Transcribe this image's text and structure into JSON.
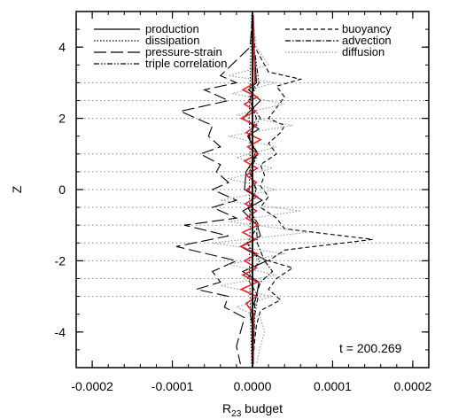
{
  "chart_data": {
    "type": "line",
    "xlabel_main": "R",
    "xlabel_sub": "23",
    "xlabel_rest": " budget",
    "ylabel": "Z",
    "xlim": [
      -0.00022,
      0.00022
    ],
    "ylim": [
      -5,
      5
    ],
    "x_ticks": [
      -0.0002,
      -0.0001,
      0.0,
      0.0001,
      0.0002
    ],
    "x_tick_labels": [
      "-0.0002",
      "-0.0001",
      "0.0000",
      "0.0001",
      "0.0002"
    ],
    "y_ticks": [
      -4,
      -2,
      0,
      2,
      4
    ],
    "y_tick_labels": [
      "-4",
      "-2",
      "0",
      "2",
      "4"
    ],
    "hlines_z": [
      -3,
      -2.5,
      -2,
      -1.5,
      -1,
      -0.5,
      0,
      0.5,
      1,
      2,
      2.5,
      3
    ],
    "annotation": "t = 200.269",
    "legend_left": [
      "production",
      "dissipation",
      "pressure-strain",
      "triple correlation"
    ],
    "legend_right": [
      "buoyancy",
      "advection",
      "diffusion"
    ],
    "series": [
      {
        "name": "production",
        "style": "solid",
        "color": "#000000",
        "z": [
          4.9,
          4.0,
          3.0,
          2.8,
          2.5,
          2.0,
          1.7,
          1.5,
          1.0,
          0.5,
          0.0,
          -0.3,
          -0.6,
          -1.0,
          -1.3,
          -1.6,
          -2.0,
          -2.3,
          -2.6,
          -3.0,
          -3.5,
          -4.0,
          -4.9
        ],
        "values": [
          0,
          2e-06,
          5e-06,
          -5e-06,
          1e-05,
          -1.2e-05,
          8e-06,
          -6e-06,
          6e-06,
          -8e-06,
          -1e-05,
          1.2e-05,
          -1.2e-05,
          6e-06,
          1e-05,
          -1.5e-05,
          1.8e-05,
          -1.2e-05,
          8e-06,
          5e-06,
          -3e-06,
          2e-06,
          0
        ]
      },
      {
        "name": "dissipation",
        "style": "dotted",
        "color": "#000000",
        "z": [
          4.9,
          4.0,
          3.0,
          2.0,
          1.0,
          0.0,
          -1.0,
          -2.0,
          -3.0,
          -4.0,
          -4.9
        ],
        "values": [
          -1e-06,
          -2e-06,
          -3e-06,
          -4e-06,
          -3e-06,
          -4e-06,
          -3e-06,
          -4e-06,
          -3e-06,
          -2e-06,
          -1e-06
        ]
      },
      {
        "name": "pressure-strain",
        "style": "longdash",
        "color": "#000000",
        "z": [
          4.9,
          4.0,
          3.2,
          3.0,
          2.8,
          2.5,
          2.2,
          2.0,
          1.8,
          1.5,
          1.2,
          1.0,
          0.7,
          0.5,
          0.2,
          0.0,
          -0.3,
          -0.5,
          -0.8,
          -1.0,
          -1.3,
          -1.6,
          -2.0,
          -2.3,
          -2.6,
          -2.8,
          -3.0,
          -3.3,
          -3.6,
          -4.0,
          -4.4,
          -4.9
        ],
        "values": [
          0,
          -3e-06,
          -4e-05,
          -2e-05,
          -6e-05,
          -3e-05,
          -9e-05,
          -7e-05,
          -5e-05,
          -5.5e-05,
          -4e-05,
          -6.5e-05,
          -4e-05,
          -4.5e-05,
          -3e-05,
          -5e-05,
          -2e-05,
          -5e-05,
          -2e-05,
          -8.5e-05,
          -3e-05,
          -9.5e-05,
          -2e-05,
          -5e-05,
          -4e-05,
          -7e-05,
          -3e-05,
          -3.5e-05,
          -1e-05,
          -1.5e-05,
          -2e-05,
          -1.5e-05
        ]
      },
      {
        "name": "triple correlation",
        "style": "dashdotdot",
        "color": "#000000",
        "z": [
          4.9,
          4.0,
          3.0,
          2.5,
          2.0,
          1.5,
          1.0,
          0.5,
          0.0,
          -0.5,
          -1.0,
          -1.5,
          -2.0,
          -2.5,
          -3.0,
          -3.5,
          -4.0,
          -4.9
        ],
        "values": [
          0,
          2e-06,
          8e-06,
          -5e-06,
          1e-05,
          -6e-06,
          7e-06,
          -4e-06,
          5e-06,
          -6e-06,
          8e-06,
          -7e-06,
          9e-06,
          -6e-06,
          7e-06,
          3e-06,
          2e-06,
          0
        ]
      },
      {
        "name": "buoyancy",
        "style": "dashed",
        "color": "#000000",
        "z": [
          4.9,
          4.0,
          3.3,
          3.1,
          2.9,
          2.6,
          2.3,
          2.0,
          1.8,
          1.6,
          1.3,
          1.0,
          0.7,
          0.4,
          0.1,
          -0.2,
          -0.5,
          -0.8,
          -1.1,
          -1.4,
          -1.7,
          -2.0,
          -2.2,
          -2.5,
          -2.8,
          -3.1,
          -3.4,
          -3.8,
          -4.2,
          -4.9
        ],
        "values": [
          0,
          3e-06,
          2e-05,
          6e-05,
          3e-05,
          4e-05,
          3e-05,
          2e-05,
          4e-05,
          3.5e-05,
          2e-05,
          3e-05,
          1e-05,
          1.5e-05,
          1e-05,
          2e-05,
          1e-05,
          3e-05,
          4e-05,
          0.00015,
          4e-05,
          2e-05,
          5e-05,
          3e-05,
          2e-05,
          3.5e-05,
          1e-05,
          5e-06,
          3e-06,
          0
        ]
      },
      {
        "name": "advection",
        "style": "dashdot",
        "color": "#000000",
        "z": [
          4.9,
          4.0,
          3.0,
          2.5,
          2.0,
          1.5,
          1.0,
          0.5,
          0.0,
          -0.5,
          -1.0,
          -1.5,
          -2.0,
          -2.3,
          -2.6,
          -3.0,
          -3.5,
          -4.0,
          -4.9
        ],
        "values": [
          0,
          1e-06,
          4e-06,
          -3e-06,
          5e-06,
          -4e-06,
          3e-06,
          -2e-06,
          4e-06,
          -3e-06,
          5e-06,
          6e-06,
          1.5e-05,
          2.5e-05,
          1e-05,
          4e-06,
          2e-06,
          1e-06,
          0
        ]
      },
      {
        "name": "diffusion",
        "style": "dotted-grey",
        "color": "#999999",
        "z": [
          4.9,
          4.0,
          3.5,
          3.2,
          3.0,
          2.7,
          2.4,
          2.1,
          1.8,
          1.5,
          1.2,
          0.9,
          0.6,
          0.3,
          0.0,
          -0.3,
          -0.6,
          -0.9,
          -1.2,
          -1.5,
          -1.8,
          -2.1,
          -2.4,
          -2.7,
          -3.0,
          -3.3,
          -3.6,
          -4.0,
          -4.4,
          -4.9
        ],
        "values": [
          0,
          5e-06,
          2e-05,
          -3e-05,
          3e-05,
          -2.5e-05,
          4e-05,
          -2e-05,
          5e-05,
          -3e-05,
          3e-05,
          -2e-05,
          2.5e-05,
          -3e-05,
          3e-05,
          -4e-05,
          6e-05,
          -3e-05,
          7e-05,
          -5e-05,
          4e-05,
          -3e-05,
          3e-05,
          -4e-05,
          2.5e-05,
          -2e-05,
          1e-05,
          1.5e-05,
          1e-05,
          5e-06
        ]
      },
      {
        "name": "",
        "style": "solid",
        "color": "#e8272a",
        "z": [
          4.9,
          4.0,
          3.0,
          2.8,
          2.6,
          2.4,
          2.2,
          2.0,
          1.8,
          1.6,
          1.4,
          1.2,
          1.0,
          0.8,
          0.6,
          0.4,
          0.2,
          0.0,
          -0.2,
          -0.4,
          -0.6,
          -0.8,
          -1.0,
          -1.2,
          -1.4,
          -1.6,
          -1.8,
          -2.0,
          -2.2,
          -2.4,
          -2.6,
          -2.8,
          -3.0,
          -3.2,
          -3.5,
          -4.0,
          -4.9
        ],
        "values": [
          1e-06,
          2e-06,
          3e-06,
          -1.2e-05,
          6e-06,
          -1e-05,
          4e-06,
          -1.4e-05,
          5e-06,
          -8e-06,
          1e-05,
          -6e-06,
          7e-06,
          -1e-05,
          6e-06,
          -8e-06,
          5e-06,
          -7e-06,
          6e-06,
          -9e-06,
          5e-06,
          -8e-06,
          7e-06,
          -1.2e-05,
          4e-06,
          -1.4e-05,
          6e-06,
          -1e-05,
          5e-06,
          -1.2e-05,
          6e-06,
          -1.4e-05,
          5e-06,
          -8e-06,
          2e-06,
          1e-06,
          1e-06
        ]
      }
    ]
  }
}
